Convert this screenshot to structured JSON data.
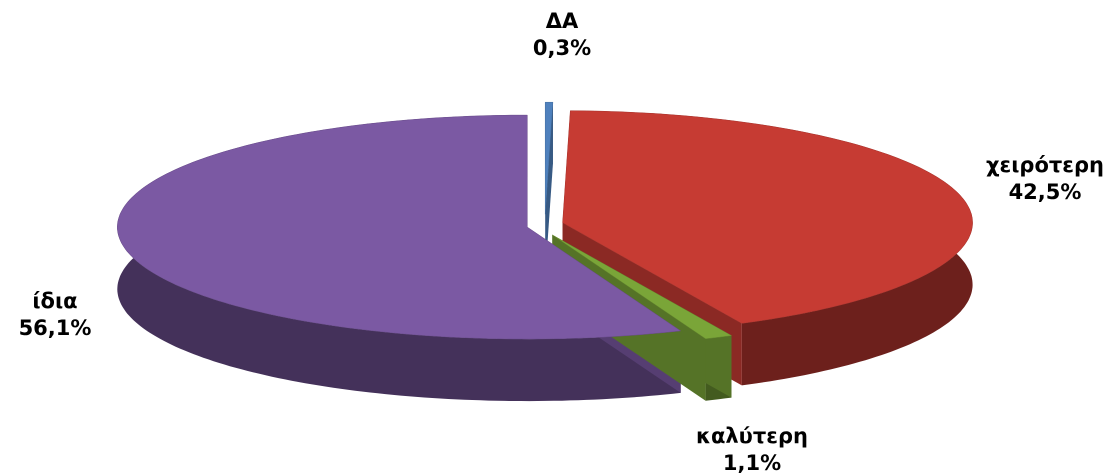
{
  "chart_data": {
    "type": "pie",
    "categories": [
      "ΔΑ",
      "χειρότερη",
      "καλύτερη",
      "ίδια"
    ],
    "values": [
      0.3,
      42.5,
      1.1,
      56.1
    ],
    "value_labels": [
      "0,3%",
      "42,5%",
      "1,1%",
      "56,1%"
    ],
    "colors": [
      "#4f81bd",
      "#c63b33",
      "#7aa538",
      "#7b59a3"
    ]
  }
}
